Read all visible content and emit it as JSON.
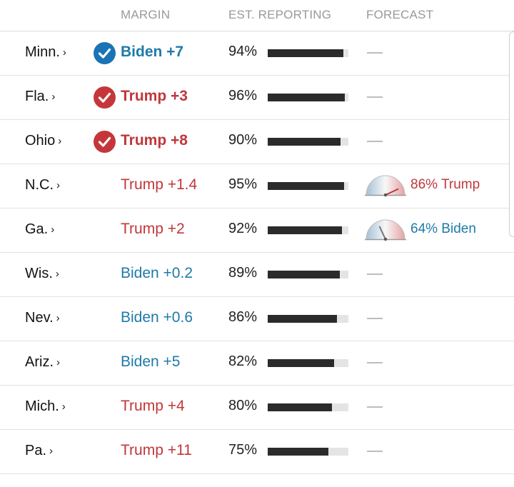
{
  "colors": {
    "biden": "#1e7aa8",
    "trump": "#c0373a",
    "check_biden": "#1a73b5",
    "check_trump": "#c5363a"
  },
  "header": {
    "margin": "MARGIN",
    "reporting": "EST. REPORTING",
    "forecast": "FORECAST"
  },
  "rows": [
    {
      "state": "Minn.",
      "margin": "Biden +7",
      "party": "biden",
      "called": true,
      "reporting": "94%",
      "reporting_fraction": 0.94,
      "forecast": null
    },
    {
      "state": "Fla.",
      "margin": "Trump +3",
      "party": "trump",
      "called": true,
      "reporting": "96%",
      "reporting_fraction": 0.96,
      "forecast": null
    },
    {
      "state": "Ohio",
      "margin": "Trump +8",
      "party": "trump",
      "called": true,
      "reporting": "90%",
      "reporting_fraction": 0.9,
      "forecast": null
    },
    {
      "state": "N.C.",
      "margin": "Trump +1.4",
      "party": "trump",
      "called": false,
      "reporting": "95%",
      "reporting_fraction": 0.95,
      "forecast": {
        "text": "86% Trump",
        "party": "trump",
        "needle_value": 0.86
      }
    },
    {
      "state": "Ga.",
      "margin": "Trump +2",
      "party": "trump",
      "called": false,
      "reporting": "92%",
      "reporting_fraction": 0.92,
      "forecast": {
        "text": "64% Biden",
        "party": "biden",
        "needle_value": 0.36
      }
    },
    {
      "state": "Wis.",
      "margin": "Biden +0.2",
      "party": "biden",
      "called": false,
      "reporting": "89%",
      "reporting_fraction": 0.89,
      "forecast": null
    },
    {
      "state": "Nev.",
      "margin": "Biden +0.6",
      "party": "biden",
      "called": false,
      "reporting": "86%",
      "reporting_fraction": 0.86,
      "forecast": null
    },
    {
      "state": "Ariz.",
      "margin": "Biden +5",
      "party": "biden",
      "called": false,
      "reporting": "82%",
      "reporting_fraction": 0.82,
      "forecast": null
    },
    {
      "state": "Mich.",
      "margin": "Trump +4",
      "party": "trump",
      "called": false,
      "reporting": "80%",
      "reporting_fraction": 0.8,
      "forecast": null
    },
    {
      "state": "Pa.",
      "margin": "Trump +11",
      "party": "trump",
      "called": false,
      "reporting": "75%",
      "reporting_fraction": 0.75,
      "forecast": null
    }
  ]
}
